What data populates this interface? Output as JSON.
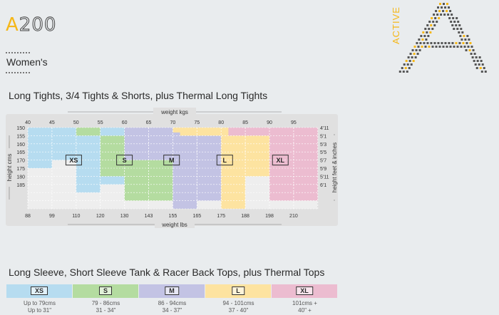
{
  "brand": {
    "logo_a": "A",
    "logo_num": "200",
    "active_word": "ACTIVE",
    "accent": "#f5b718"
  },
  "category": "Women's",
  "section1_title": "Long Tights, 3/4 Tights & Shorts, plus Thermal Long Tights",
  "section2_title": "Long Sleeve, Short Sleeve Tank & Racer Back Tops, plus Thermal Tops",
  "chart_data": {
    "type": "heatmap",
    "top_axis_title": "weight kgs",
    "bottom_axis_title": "weight lbs",
    "left_axis_title": "height cms",
    "right_axis_title": "height feet & inches",
    "kg_ticks": [
      "40",
      "45",
      "50",
      "55",
      "60",
      "65",
      "70",
      "75",
      "80",
      "85",
      "90",
      "95"
    ],
    "lbs_ticks": [
      "88",
      "99",
      "110",
      "120",
      "130",
      "143",
      "155",
      "165",
      "175",
      "188",
      "198",
      "210"
    ],
    "cm_ticks": [
      "150",
      "155",
      "160",
      "165",
      "170",
      "175",
      "180",
      "185"
    ],
    "ft_ticks": [
      "4'11",
      "5'1",
      "5'3",
      "5'5",
      "5'7",
      "5'9",
      "5'11",
      "6'1"
    ],
    "sizes": [
      {
        "label": "XS",
        "color": "#b6dcf0"
      },
      {
        "label": "S",
        "color": "#b4dca0"
      },
      {
        "label": "M",
        "color": "#c3c3e4"
      },
      {
        "label": "L",
        "color": "#fde3a0"
      },
      {
        "label": "XL",
        "color": "#ecbcd0"
      }
    ]
  },
  "tops": [
    {
      "size": "XS",
      "color": "#b6dcf0",
      "chest": "Up to 79cms",
      "inches": "Up to 31\""
    },
    {
      "size": "S",
      "color": "#b4dca0",
      "chest": "79 - 86cms",
      "inches": "31 - 34\""
    },
    {
      "size": "M",
      "color": "#c3c3e4",
      "chest": "86 - 94cms",
      "inches": "34 - 37\""
    },
    {
      "size": "L",
      "color": "#fde3a0",
      "chest": "94 - 101cms",
      "inches": "37 - 40\""
    },
    {
      "size": "XL",
      "color": "#ecbcd0",
      "chest": "101cms +",
      "inches": "40\" +"
    }
  ]
}
